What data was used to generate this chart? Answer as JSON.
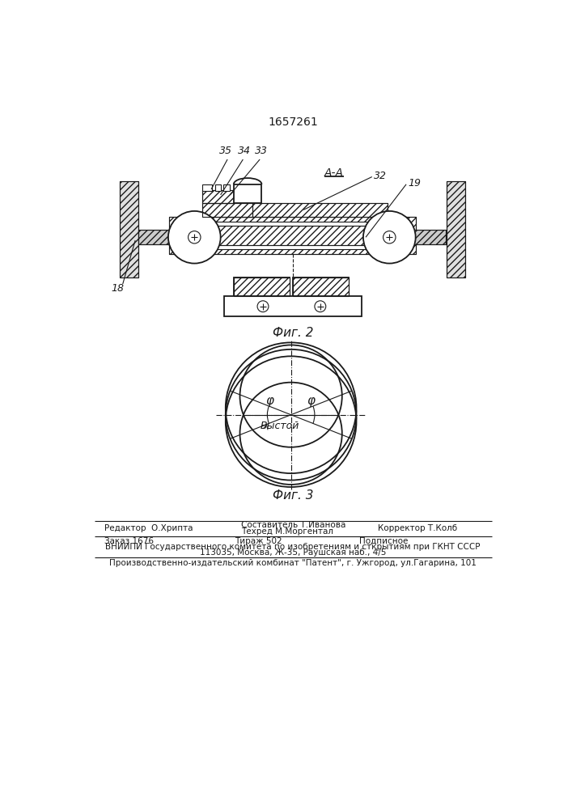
{
  "patent_number": "1657261",
  "fig2_label": "Фиг. 2",
  "fig3_label": "Фиг. 3",
  "section_label": "А-А",
  "vystoi": "Выстой",
  "footer": {
    "editor": "Редактор  О.Хрипта",
    "composer_label": "Составитель Т.Иванова",
    "techred_label": "Техред М.Моргентал",
    "corrector": "Корректор Т.Колб",
    "order": "Заказ 1676",
    "tirazh": "Тираж 502",
    "podpisnoe": "Подписное",
    "vniip_line1": "ВНИИПИ Государственного комитета по изобретениям и сткрытиям при ГКНТ СССР",
    "vniip_line2": "113035, Москва, Ж-35, Раушская наб., 4/5",
    "proizv": "Производственно-издательский комбинат \"Патент\", г. Ужгород, ул.Гагарина, 101"
  },
  "bg_color": "#ffffff",
  "line_color": "#1a1a1a"
}
